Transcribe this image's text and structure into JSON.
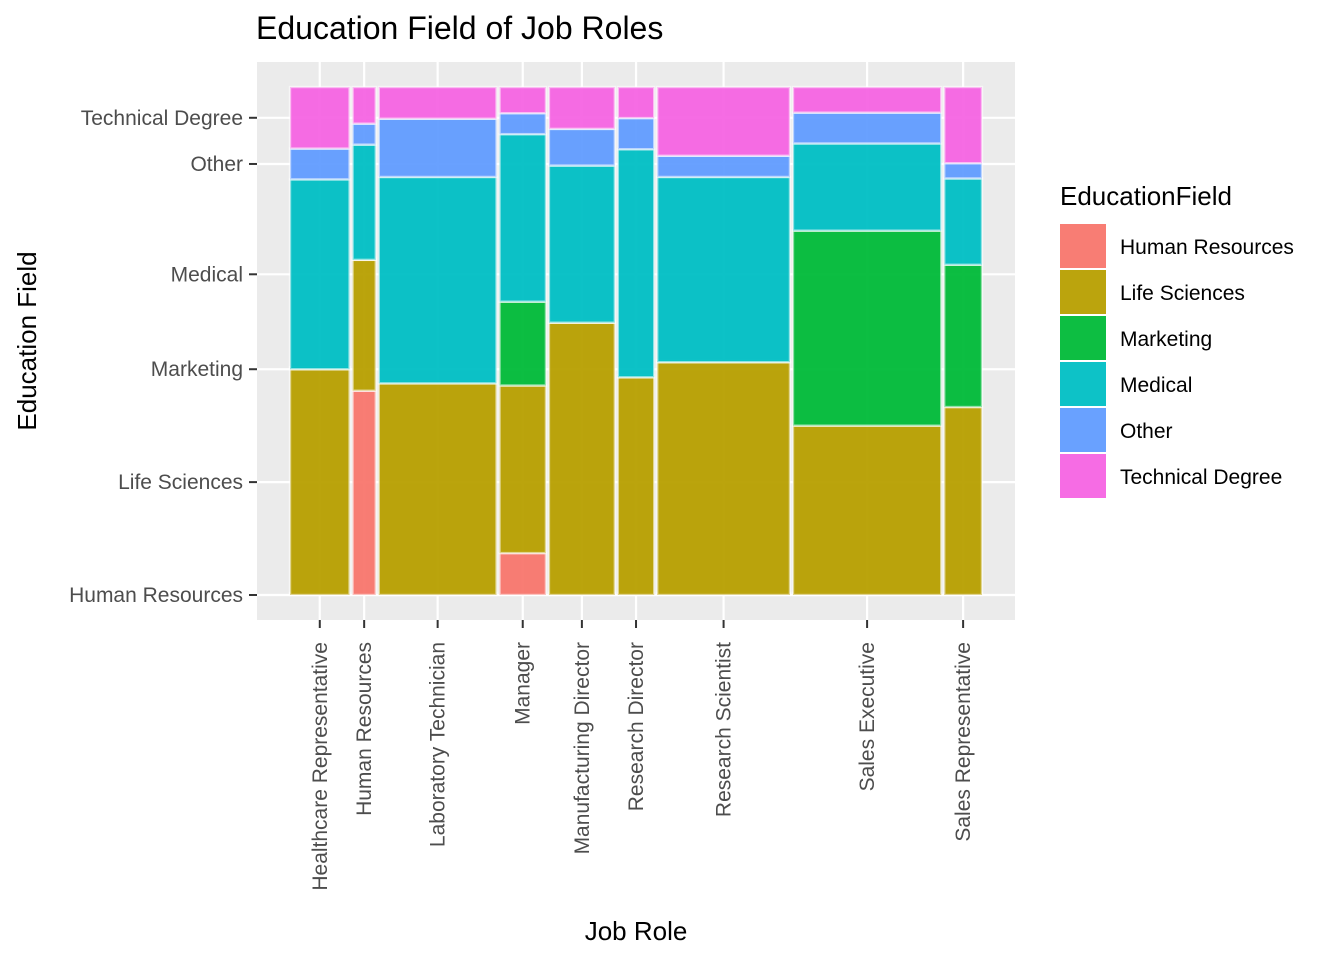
{
  "chart_data": {
    "type": "mosaic",
    "title": "Education Field of Job Roles",
    "xlabel": "Job Role",
    "ylabel": "Education Field",
    "legend": {
      "title": "EducationField",
      "placement": "right",
      "entries": [
        {
          "label": "Human Resources",
          "color": "#F8766D"
        },
        {
          "label": "Life Sciences",
          "color": "#B79F00"
        },
        {
          "label": "Marketing",
          "color": "#00BA38"
        },
        {
          "label": "Medical",
          "color": "#00BFC4"
        },
        {
          "label": "Other",
          "color": "#619CFF"
        },
        {
          "label": "Technical Degree",
          "color": "#F564E3"
        }
      ]
    },
    "y_ticks": [
      "Human Resources",
      "Life Sciences",
      "Marketing",
      "Medical",
      "Other",
      "Technical Degree"
    ],
    "grid": true,
    "categories": [
      "Healthcare Representative",
      "Human Resources",
      "Laboratory Technician",
      "Manager",
      "Manufacturing Director",
      "Research Director",
      "Research Scientist",
      "Sales Executive",
      "Sales Representative"
    ],
    "column_share": [
      0.0891,
      0.0347,
      0.1762,
      0.0694,
      0.0986,
      0.0544,
      0.1986,
      0.2218,
      0.0565
    ],
    "series": [
      {
        "name": "Human Resources",
        "values": [
          0.0,
          0.39,
          0.0,
          0.08,
          0.0,
          0.0,
          0.0,
          0.0,
          0.0
        ]
      },
      {
        "name": "Life Sciences",
        "values": [
          0.44,
          0.25,
          0.4,
          0.32,
          0.52,
          0.42,
          0.44,
          0.33,
          0.37
        ]
      },
      {
        "name": "Marketing",
        "values": [
          0.0,
          0.0,
          0.0,
          0.16,
          0.0,
          0.0,
          0.0,
          0.38,
          0.28
        ]
      },
      {
        "name": "Medical",
        "values": [
          0.37,
          0.22,
          0.39,
          0.32,
          0.3,
          0.44,
          0.35,
          0.17,
          0.17
        ]
      },
      {
        "name": "Other",
        "values": [
          0.06,
          0.04,
          0.11,
          0.04,
          0.07,
          0.06,
          0.04,
          0.06,
          0.03
        ]
      },
      {
        "name": "Technical Degree",
        "values": [
          0.12,
          0.07,
          0.06,
          0.05,
          0.08,
          0.06,
          0.13,
          0.05,
          0.15
        ]
      }
    ]
  }
}
